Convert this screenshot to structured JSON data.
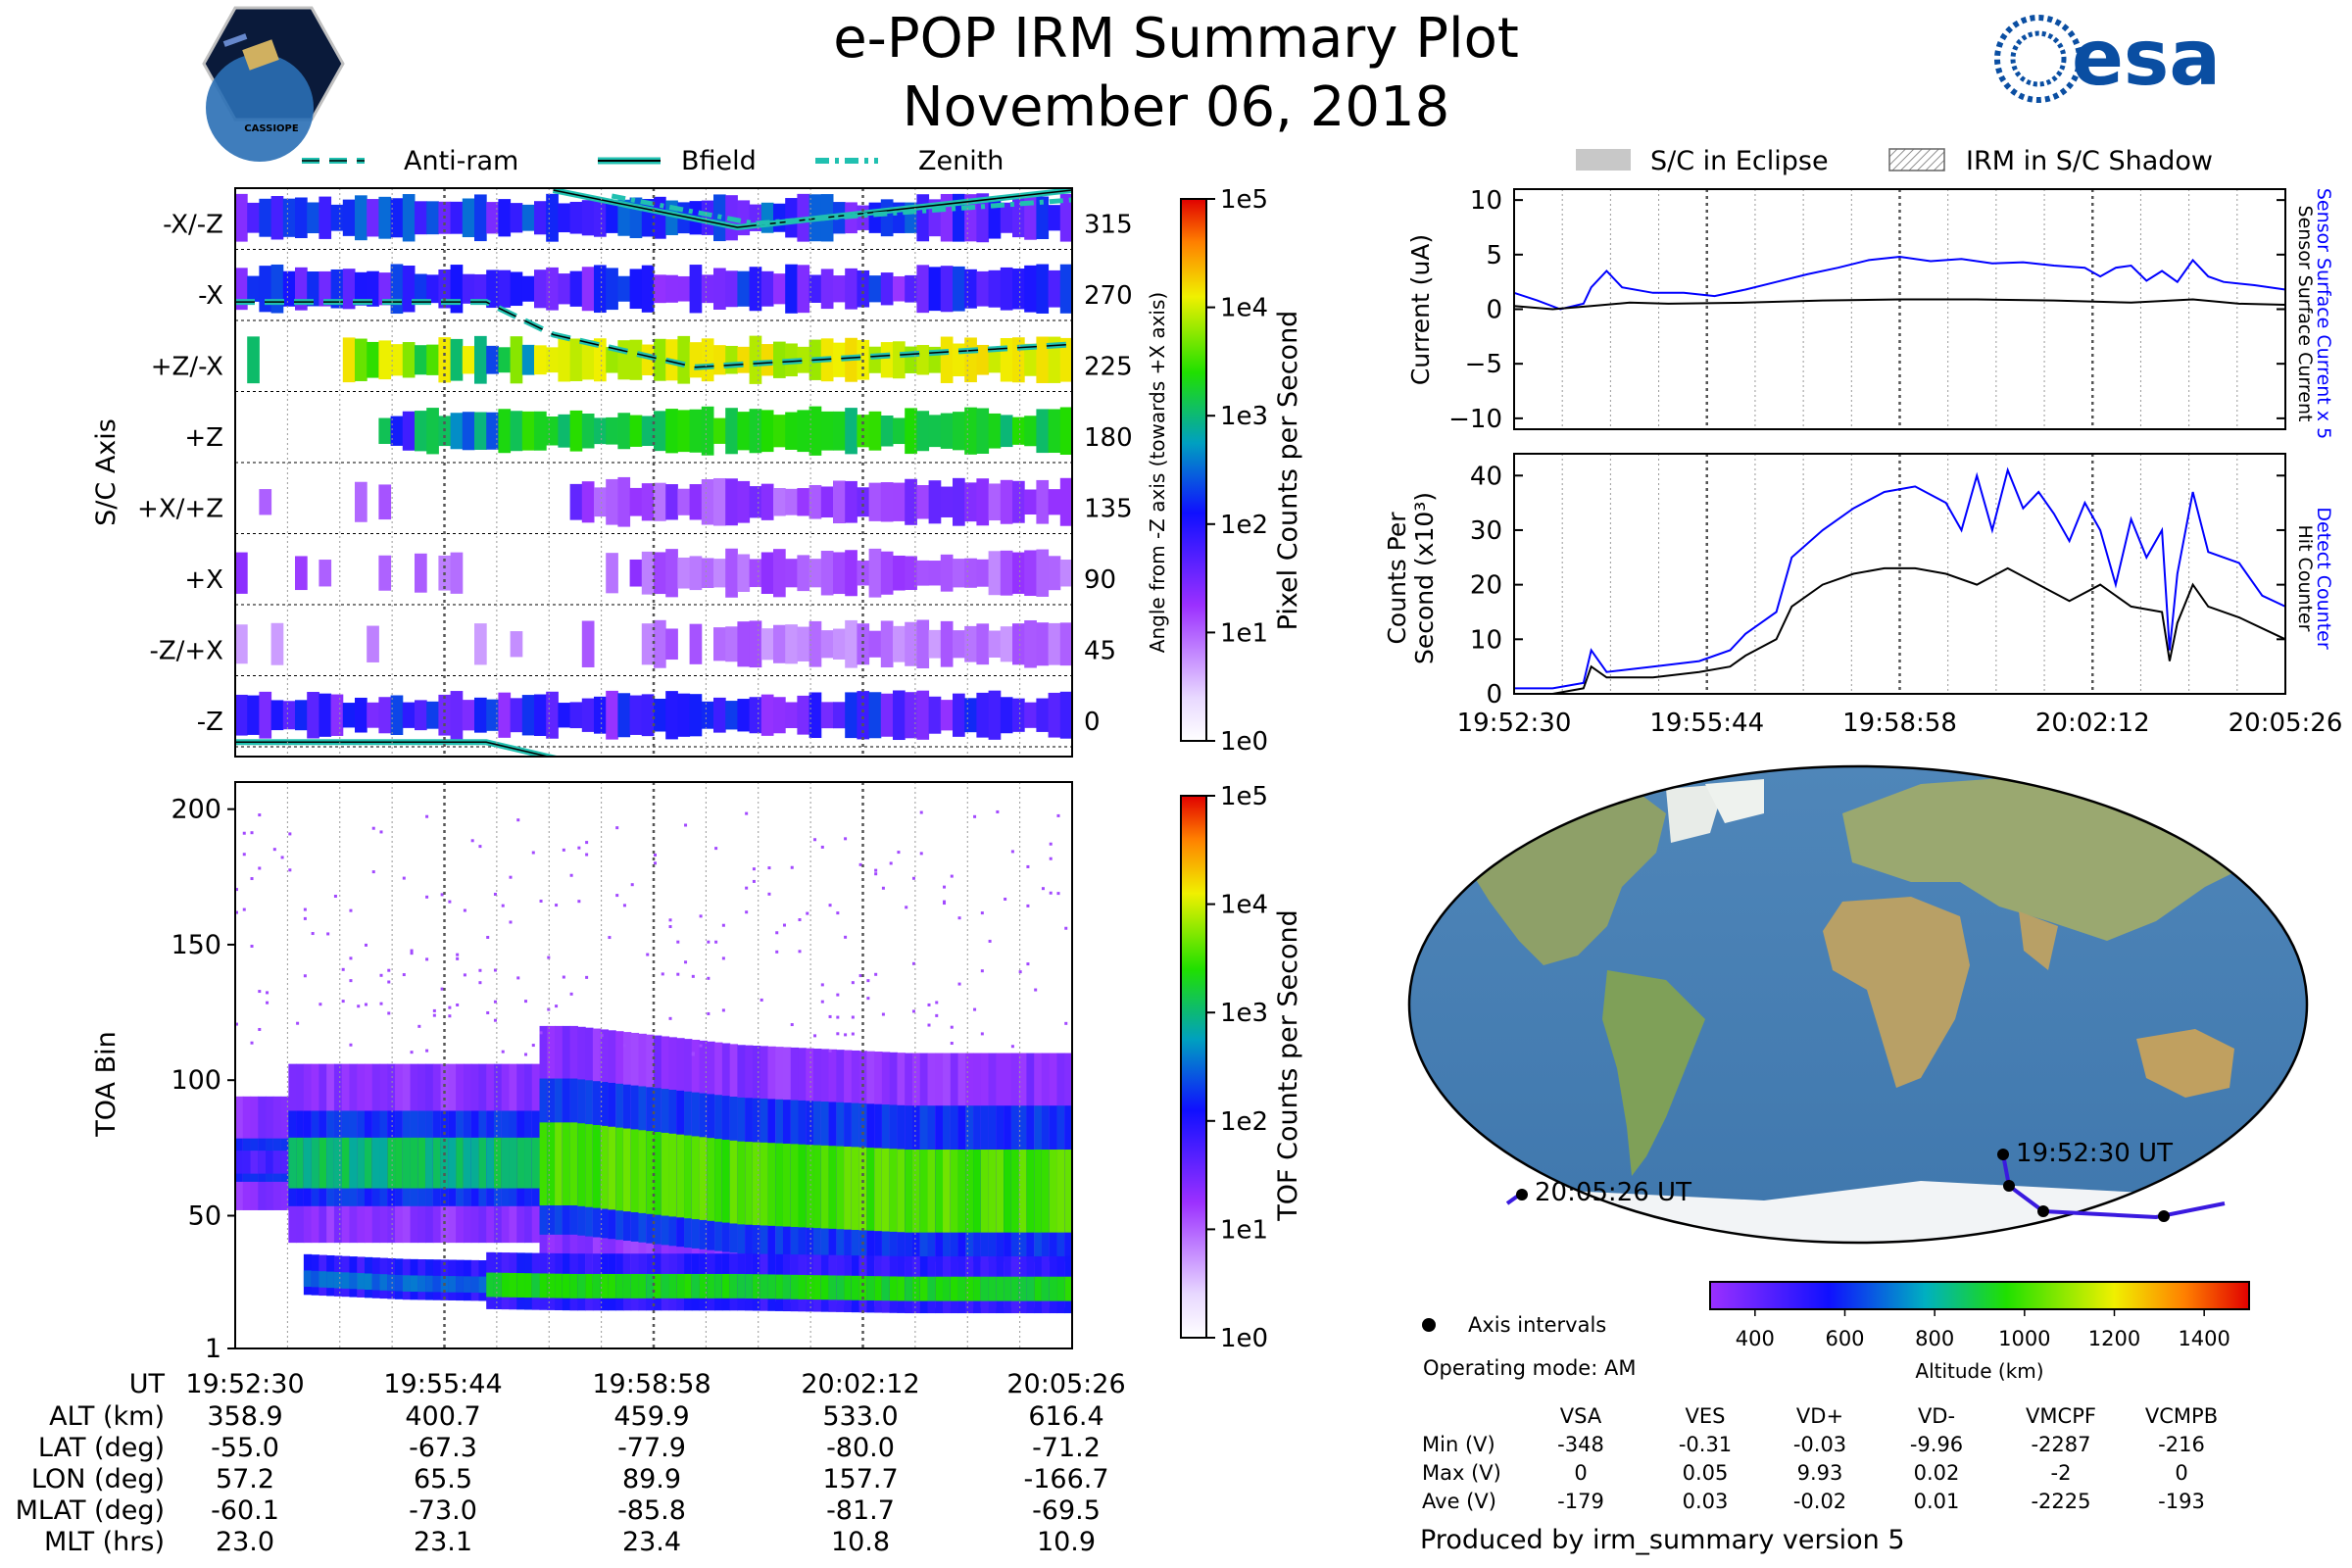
{
  "header": {
    "title": "e-POP IRM Summary Plot",
    "date": "November 06, 2018",
    "esa_logo_text": "esa",
    "mission_badge_text": "CASSIOPE"
  },
  "legend_top_left": {
    "anti_ram": "Anti-ram",
    "bfield": "Bfield",
    "zenith": "Zenith"
  },
  "legend_top_right": {
    "eclipse": "S/C in Eclipse",
    "shadow": "IRM in S/C Shadow"
  },
  "colors": {
    "blue_trace": "#0000ff",
    "black_trace": "#000000",
    "overlay_teal": "#20c0b0",
    "track_line": "#3a1adf"
  },
  "time_ticks": [
    "19:52:30",
    "19:55:44",
    "19:58:58",
    "20:02:12",
    "20:05:26"
  ],
  "chart_data": [
    {
      "type": "heatmap",
      "name": "sc_axis_spectrogram",
      "ylabel": "S/C Axis",
      "categories": [
        "-X/-Z",
        "-X",
        "+Z/-X",
        "+Z",
        "+X/+Z",
        "+X",
        "-Z/+X",
        "-Z"
      ],
      "right_ticks": [
        "315",
        "270",
        "225",
        "180",
        "135",
        "90",
        "45",
        "0"
      ],
      "right_label": "Angle from -Z axis (towards +X axis)",
      "colorbar_label": "Pixel Counts per Second",
      "colorbar_ticks": [
        "1e5",
        "1e4",
        "1e3",
        "1e2",
        "1e1",
        "1e0"
      ],
      "row_activity": [
        0.55,
        0.5,
        0.9,
        0.7,
        0.35,
        0.3,
        0.25,
        0.5
      ],
      "overlays": {
        "anti_ram_deg": [
          [
            0,
            262
          ],
          [
            0.3,
            262
          ],
          [
            0.38,
            242
          ],
          [
            0.55,
            222
          ],
          [
            1.0,
            236
          ]
        ],
        "bfield_deg": [
          [
            0,
            -8
          ],
          [
            0.3,
            -8
          ],
          [
            0.4,
            -20
          ],
          [
            1.0,
            -20
          ]
        ]
      }
    },
    {
      "type": "heatmap",
      "name": "toa_spectrogram",
      "ylabel": "TOA Bin",
      "yticks": [
        "1",
        "50",
        "100",
        "150",
        "200"
      ],
      "ylim": [
        1,
        210
      ],
      "colorbar_label": "TOF Counts per Second",
      "colorbar_ticks": [
        "1e5",
        "1e4",
        "1e3",
        "1e2",
        "1e1",
        "1e0"
      ],
      "main_band_center_bin": [
        70,
        70,
        70,
        63,
        60,
        60
      ],
      "lower_band_center_bin": [
        28,
        25,
        24,
        24,
        23,
        23
      ]
    },
    {
      "type": "line",
      "name": "sensor_current",
      "ylabel": "Current (uA)",
      "yticks": [
        "10",
        "5",
        "0",
        "−5",
        "−10"
      ],
      "ylim": [
        -11,
        11
      ],
      "right_label_blue": "Sensor Surface Current x 5",
      "right_label_black": "Sensor Surface Current",
      "series": [
        {
          "name": "Sensor Surface Current x 5",
          "color": "#0000ff",
          "x": [
            0,
            0.03,
            0.06,
            0.09,
            0.1,
            0.12,
            0.14,
            0.18,
            0.22,
            0.26,
            0.3,
            0.34,
            0.38,
            0.42,
            0.46,
            0.5,
            0.54,
            0.58,
            0.62,
            0.66,
            0.7,
            0.74,
            0.76,
            0.78,
            0.8,
            0.82,
            0.84,
            0.86,
            0.88,
            0.9,
            0.92,
            0.96,
            1.0
          ],
          "values": [
            1.5,
            0.8,
            0.0,
            0.5,
            2.0,
            3.5,
            2.0,
            1.5,
            1.5,
            1.2,
            1.8,
            2.5,
            3.2,
            3.8,
            4.5,
            4.8,
            4.4,
            4.6,
            4.2,
            4.3,
            4.0,
            3.8,
            3.0,
            3.8,
            4.0,
            2.6,
            3.5,
            2.5,
            4.5,
            3.0,
            2.5,
            2.2,
            1.8
          ]
        },
        {
          "name": "Sensor Surface Current",
          "color": "#000000",
          "x": [
            0,
            0.05,
            0.1,
            0.15,
            0.2,
            0.3,
            0.4,
            0.5,
            0.6,
            0.7,
            0.8,
            0.88,
            0.94,
            1.0
          ],
          "values": [
            0.3,
            0.0,
            0.3,
            0.6,
            0.5,
            0.6,
            0.8,
            0.9,
            0.9,
            0.8,
            0.6,
            0.9,
            0.5,
            0.4
          ]
        }
      ]
    },
    {
      "type": "line",
      "name": "detector_counts",
      "ylabel": "Counts Per",
      "ylabel2": "Second (x10³)",
      "yticks": [
        "40",
        "30",
        "20",
        "10",
        "0"
      ],
      "ylim": [
        0,
        44
      ],
      "right_label_blue": "Detect Counter",
      "right_label_black": "Hit Counter",
      "xticks": [
        "19:52:30",
        "19:55:44",
        "19:58:58",
        "20:02:12",
        "20:05:26"
      ],
      "series": [
        {
          "name": "Detect Counter",
          "color": "#0000ff",
          "x": [
            0,
            0.05,
            0.09,
            0.1,
            0.12,
            0.18,
            0.24,
            0.28,
            0.3,
            0.34,
            0.36,
            0.4,
            0.44,
            0.48,
            0.52,
            0.56,
            0.58,
            0.6,
            0.62,
            0.64,
            0.66,
            0.68,
            0.7,
            0.72,
            0.74,
            0.76,
            0.78,
            0.8,
            0.82,
            0.84,
            0.85,
            0.86,
            0.88,
            0.9,
            0.94,
            0.97,
            1.0
          ],
          "values": [
            1,
            1,
            2,
            8,
            4,
            5,
            6,
            8,
            11,
            15,
            25,
            30,
            34,
            37,
            38,
            35,
            30,
            40,
            30,
            41,
            34,
            37,
            33,
            28,
            35,
            30,
            20,
            32,
            25,
            30,
            8,
            22,
            37,
            26,
            24,
            18,
            16
          ]
        },
        {
          "name": "Hit Counter",
          "color": "#000000",
          "x": [
            0,
            0.05,
            0.09,
            0.1,
            0.12,
            0.18,
            0.24,
            0.28,
            0.3,
            0.34,
            0.36,
            0.4,
            0.44,
            0.48,
            0.52,
            0.56,
            0.6,
            0.64,
            0.68,
            0.72,
            0.76,
            0.8,
            0.84,
            0.85,
            0.86,
            0.88,
            0.9,
            0.94,
            0.97,
            1.0
          ],
          "values": [
            0,
            0,
            1,
            5,
            3,
            3,
            4,
            5,
            7,
            10,
            16,
            20,
            22,
            23,
            23,
            22,
            20,
            23,
            20,
            17,
            20,
            16,
            15,
            6,
            13,
            20,
            16,
            14,
            12,
            10
          ]
        }
      ]
    }
  ],
  "map": {
    "start_label": "19:52:30 UT",
    "end_label": "20:05:26 UT",
    "colorbar_ticks": [
      "400",
      "600",
      "800",
      "1000",
      "1200",
      "1400"
    ],
    "colorbar_label": "Altitude (km)",
    "colorbar_range_km": [
      300,
      1500
    ]
  },
  "footer_left": {
    "ut_label": "UT",
    "ut_values": [
      "19:52:30",
      "19:55:44",
      "19:58:58",
      "20:02:12",
      "20:05:26"
    ],
    "rows": [
      {
        "label": "ALT (km)",
        "values": [
          "358.9",
          "400.7",
          "459.9",
          "533.0",
          "616.4"
        ]
      },
      {
        "label": "LAT (deg)",
        "values": [
          "-55.0",
          "-67.3",
          "-77.9",
          "-80.0",
          "-71.2"
        ]
      },
      {
        "label": "LON (deg)",
        "values": [
          "57.2",
          "65.5",
          "89.9",
          "157.7",
          "-166.7"
        ]
      },
      {
        "label": "MLAT (deg)",
        "values": [
          "-60.1",
          "-73.0",
          "-85.8",
          "-81.7",
          "-69.5"
        ]
      },
      {
        "label": "MLT (hrs)",
        "values": [
          "23.0",
          "23.1",
          "23.4",
          "10.8",
          "10.9"
        ]
      }
    ]
  },
  "footer_right": {
    "axis_intervals": "Axis intervals",
    "operating_mode": "Operating mode: AM",
    "voltage_headers": [
      "VSA",
      "VES",
      "VD+",
      "VD-",
      "VMCPF",
      "VCMPB"
    ],
    "voltage_rows": [
      {
        "label": "Min (V)",
        "values": [
          "-348",
          "-0.31",
          "-0.03",
          "-9.96",
          "-2287",
          "-216"
        ]
      },
      {
        "label": "Max (V)",
        "values": [
          "0",
          "0.05",
          "9.93",
          "0.02",
          "-2",
          "0"
        ]
      },
      {
        "label": "Ave (V)",
        "values": [
          "-179",
          "0.03",
          "-0.02",
          "0.01",
          "-2225",
          "-193"
        ]
      }
    ],
    "produced_by": "Produced by irm_summary version 5"
  }
}
